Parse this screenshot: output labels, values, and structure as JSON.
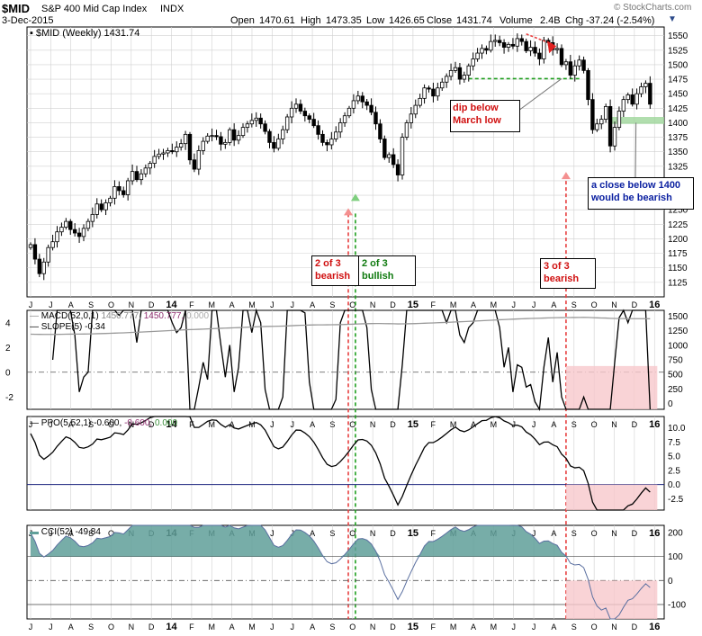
{
  "header": {
    "symbol": "$MID",
    "name": "S&P 400 Mid Cap Index",
    "exchange": "INDX",
    "date": "3-Dec-2015",
    "open_label": "Open",
    "open": "1470.61",
    "high_label": "High",
    "high": "1473.35",
    "low_label": "Low",
    "low": "1426.65",
    "close_label": "Close",
    "close": "1431.74",
    "volume_label": "Volume",
    "volume": "2.4B",
    "chg_label": "Chg",
    "chg": "-37.24 (-2.54%)",
    "watermark": "© StockCharts.com"
  },
  "colors": {
    "up": "#000000",
    "down": "#000000",
    "green_dash": "#1e9e1e",
    "red_dash": "#e84040",
    "shade_red": "#f7c8cc",
    "shade_green": "#9ed69a",
    "cci_fill": "#5f9f99",
    "macd_hist": "#999999",
    "navy": "#1a237e"
  },
  "chart_data": [
    {
      "type": "candlestick",
      "legend": "$MID (Weekly) 1431.74",
      "ylim": [
        1100,
        1565
      ],
      "yticks": [
        1125,
        1150,
        1175,
        1200,
        1225,
        1250,
        1275,
        1300,
        1325,
        1350,
        1375,
        1400,
        1425,
        1450,
        1475,
        1500,
        1525,
        1550
      ],
      "x_months": [
        "J",
        "J",
        "A",
        "S",
        "O",
        "N",
        "D",
        "14",
        "F",
        "M",
        "A",
        "M",
        "J",
        "J",
        "A",
        "S",
        "O",
        "N",
        "D",
        "15",
        "F",
        "M",
        "A",
        "M",
        "J",
        "J",
        "A",
        "S",
        "O",
        "N",
        "D",
        "16"
      ],
      "weeks_start": "2013-06-07",
      "closes": [
        1190,
        1165,
        1140,
        1160,
        1185,
        1195,
        1212,
        1220,
        1230,
        1216,
        1210,
        1204,
        1218,
        1230,
        1242,
        1260,
        1250,
        1262,
        1270,
        1290,
        1283,
        1276,
        1300,
        1316,
        1302,
        1312,
        1322,
        1330,
        1342,
        1346,
        1348,
        1352,
        1350,
        1358,
        1364,
        1380,
        1336,
        1320,
        1352,
        1368,
        1377,
        1378,
        1376,
        1363,
        1366,
        1388,
        1370,
        1378,
        1392,
        1398,
        1404,
        1408,
        1398,
        1385,
        1366,
        1356,
        1372,
        1388,
        1410,
        1425,
        1432,
        1420,
        1412,
        1406,
        1395,
        1380,
        1366,
        1362,
        1372,
        1384,
        1400,
        1412,
        1425,
        1438,
        1446,
        1436,
        1430,
        1418,
        1398,
        1372,
        1340,
        1345,
        1328,
        1310,
        1375,
        1400,
        1415,
        1430,
        1442,
        1460,
        1458,
        1446,
        1460,
        1470,
        1480,
        1490,
        1495,
        1475,
        1482,
        1498,
        1510,
        1520,
        1528,
        1525,
        1540,
        1542,
        1538,
        1530,
        1535,
        1532,
        1545,
        1540,
        1524,
        1530,
        1520,
        1510,
        1542,
        1538,
        1526,
        1528,
        1500,
        1505,
        1482,
        1498,
        1508,
        1490,
        1440,
        1388,
        1398,
        1406,
        1428,
        1360,
        1392,
        1420,
        1440,
        1448,
        1432,
        1450,
        1462,
        1468,
        1432
      ],
      "annotations": [
        {
          "text": "dip below",
          "text2": "March low"
        },
        {
          "text": "a close below 1400",
          "text2": "would be bearish"
        },
        {
          "text": "2 of 3",
          "text2": "bearish"
        },
        {
          "text": "2 of 3",
          "text2": "bullish"
        },
        {
          "text": "3 of 3",
          "text2": "bearish"
        }
      ]
    },
    {
      "type": "line",
      "legend_macd": "MACD(52,0,1) 1450.777, 1450.777, 0.000",
      "legend_macd_a": "MACD(52,0,1)",
      "legend_macd_b": "1450.777,",
      "legend_macd_c": "1450.777,",
      "legend_macd_d": "0.000",
      "legend_slope": "SLOPE(5) -0.34",
      "left_ticks": [
        -2,
        0,
        2,
        4
      ],
      "right_ticks": [
        0,
        250,
        500,
        750,
        1000,
        1250,
        1500
      ],
      "left_range": [
        -3,
        5
      ],
      "right_range": [
        -100,
        1600
      ]
    },
    {
      "type": "line",
      "legend_a": "PPO(5,52,1) -0.600,",
      "legend_b": "-0.600,",
      "legend_c": "0.000",
      "ticks": [
        -2.5,
        0.0,
        2.5,
        5.0,
        7.5,
        10.0
      ],
      "ylim": [
        -4.5,
        12
      ]
    },
    {
      "type": "area",
      "legend": "CCI(52) -49.84",
      "ticks": [
        -100,
        0,
        100,
        200
      ],
      "ylim": [
        -160,
        230
      ]
    }
  ]
}
